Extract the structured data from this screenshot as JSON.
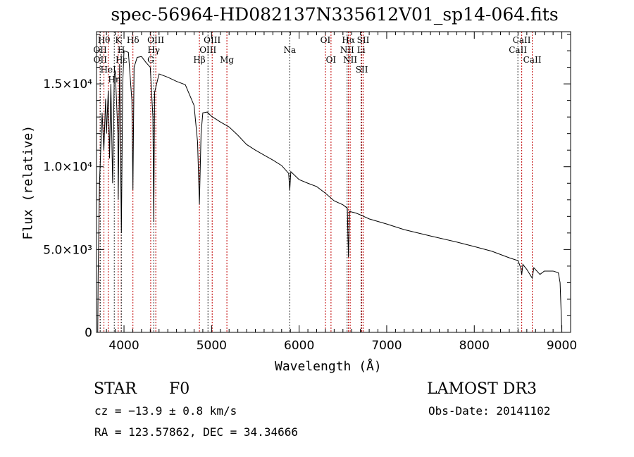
{
  "chart_data": {
    "type": "line",
    "title": "spec-56964-HD082137N335612V01_sp14-064.fits",
    "xlabel": "Wavelength (Å)",
    "ylabel": "Flux (relative)",
    "xlim": [
      3686,
      9100
    ],
    "ylim": [
      0,
      18150
    ],
    "xticks": [
      4000,
      5000,
      6000,
      7000,
      8000,
      9000
    ],
    "xtick_labels": [
      "4000",
      "5000",
      "6000",
      "7000",
      "8000",
      "9000"
    ],
    "yticks": [
      0,
      5000,
      10000,
      15000
    ],
    "ytick_labels": [
      "0",
      "5.0×10³",
      "1.0×10⁴",
      "1.5×10⁴"
    ],
    "series": [
      {
        "name": "spectrum",
        "x": [
          3700,
          3705,
          3720,
          3750,
          3770,
          3790,
          3800,
          3820,
          3835,
          3850,
          3870,
          3889,
          3900,
          3930,
          3934,
          3950,
          3970,
          3985,
          4000,
          4050,
          4090,
          4102,
          4115,
          4150,
          4200,
          4250,
          4300,
          4330,
          4340,
          4350,
          4400,
          4450,
          4500,
          4600,
          4700,
          4800,
          4840,
          4861,
          4880,
          4900,
          4950,
          5000,
          5100,
          5200,
          5300,
          5400,
          5500,
          5600,
          5700,
          5800,
          5880,
          5893,
          5905,
          6000,
          6100,
          6200,
          6300,
          6400,
          6500,
          6550,
          6563,
          6575,
          6650,
          6700,
          6800,
          7000,
          7200,
          7500,
          7800,
          8000,
          8200,
          8400,
          8500,
          8530,
          8542,
          8555,
          8600,
          8662,
          8680,
          8750,
          8800,
          8900,
          8960,
          8980,
          8990,
          9000
        ],
        "y": [
          0,
          3500,
          9000,
          13250,
          11000,
          14100,
          12000,
          14600,
          10500,
          15000,
          9000,
          15500,
          15800,
          12000,
          8000,
          16200,
          6000,
          15000,
          17000,
          16900,
          14000,
          8600,
          16000,
          16600,
          16650,
          16300,
          16000,
          13000,
          6670,
          14500,
          15600,
          15500,
          15400,
          15150,
          14950,
          13700,
          11500,
          7730,
          12000,
          13250,
          13300,
          13040,
          12700,
          12400,
          11900,
          11340,
          11000,
          10700,
          10400,
          10070,
          9600,
          8580,
          9700,
          9220,
          9000,
          8800,
          8400,
          7940,
          7700,
          7500,
          4550,
          7300,
          7200,
          7090,
          6850,
          6540,
          6200,
          5820,
          5450,
          5180,
          4900,
          4500,
          4330,
          3900,
          3480,
          4100,
          3800,
          3270,
          3900,
          3500,
          3700,
          3700,
          3600,
          3000,
          1500,
          0
        ]
      }
    ],
    "lines": [
      {
        "w": 3727,
        "label": "OII",
        "row": 2
      },
      {
        "w": 3729,
        "label": "OII",
        "row": 3
      },
      {
        "w": 3771,
        "label": "Hθ",
        "row": 1
      },
      {
        "w": 3820,
        "label": "HeI",
        "row": 2
      },
      {
        "w": 3889,
        "label": "Hη",
        "row": 3
      },
      {
        "w": 3934,
        "label": "K",
        "row": 1
      },
      {
        "w": 3968,
        "label": "H",
        "row": 2
      },
      {
        "w": 3970,
        "label": "Hε",
        "row": 3
      },
      {
        "w": 4102,
        "label": "Hδ",
        "row": 1
      },
      {
        "w": 4305,
        "label": "G",
        "row": 3
      },
      {
        "w": 4340,
        "label": "Hγ",
        "row": 2
      },
      {
        "w": 4363,
        "label": "OIII",
        "row": 1
      },
      {
        "w": 4861,
        "label": "Hβ",
        "row": 3
      },
      {
        "w": 4959,
        "label": "OIII",
        "row": 2
      },
      {
        "w": 5007,
        "label": "OIII",
        "row": 1
      },
      {
        "w": 5175,
        "label": "Mg",
        "row": 3
      },
      {
        "w": 5893,
        "label": "Na",
        "row": 2
      },
      {
        "w": 6300,
        "label": "OI",
        "row": 1
      },
      {
        "w": 6364,
        "label": "OI",
        "row": 3
      },
      {
        "w": 6548,
        "label": "NII",
        "row": 2
      },
      {
        "w": 6563,
        "label": "Hα",
        "row": 1
      },
      {
        "w": 6583,
        "label": "NII",
        "row": 3
      },
      {
        "w": 6708,
        "label": "Li",
        "row": 2
      },
      {
        "w": 6716,
        "label": "SII",
        "row": 1
      },
      {
        "w": 6731,
        "label": "SII",
        "row": 3
      },
      {
        "w": 8498,
        "label": "CaII",
        "row": 2
      },
      {
        "w": 8542,
        "label": "CaII",
        "row": 1
      },
      {
        "w": 8662,
        "label": "CaII",
        "row": 3
      }
    ]
  },
  "info": {
    "object": "STAR",
    "subclass": "F0",
    "survey": "LAMOST DR3",
    "cz": "cz = −13.9 ± 0.8 km/s",
    "obs_date": "Obs-Date: 20141102",
    "coords": "RA = 123.57862, DEC =  34.34666"
  }
}
